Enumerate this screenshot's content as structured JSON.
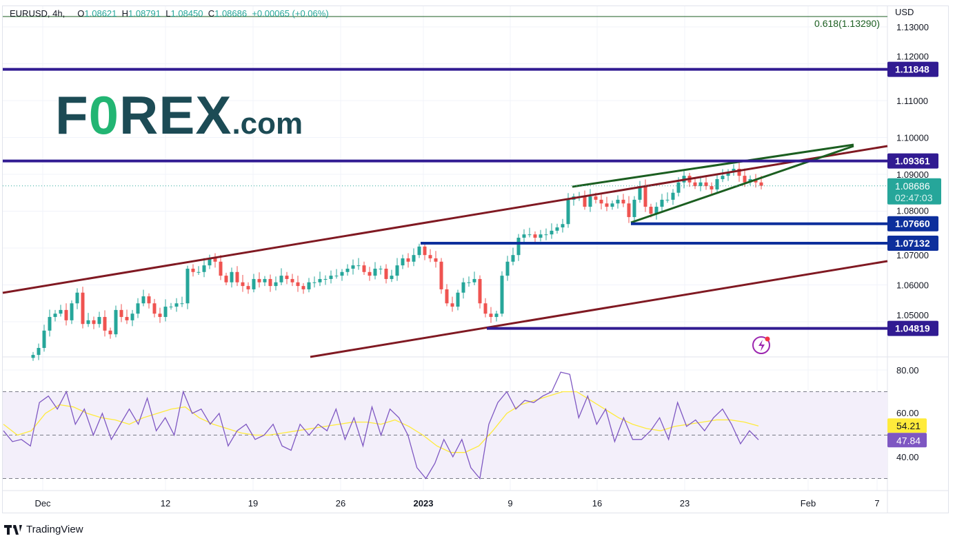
{
  "legend": {
    "symbol": "EURUSD, 4h,",
    "o_label": "O",
    "o": "1.08621",
    "h_label": "H",
    "h": "1.08791",
    "l_label": "L",
    "l": "1.08450",
    "c_label": "C",
    "c": "1.08686",
    "change": "+0.00065 (+0.06%)"
  },
  "logo": {
    "text_a": "F",
    "text_o": "0",
    "text_b": "REX",
    ".com": ".com",
    "com": ".com"
  },
  "footer": {
    "brand": "TradingView"
  },
  "chart_data": {
    "type": "candlestick",
    "symbol": "EURUSD",
    "interval": "4h",
    "currency": "USD",
    "price_ticks": [
      "1.13000",
      "1.12000",
      "1.11000",
      "1.10000",
      "1.09000",
      "1.08000",
      "1.07000",
      "1.06000",
      "1.05000"
    ],
    "price_tick_values": [
      1.13,
      1.12,
      1.11,
      1.1,
      1.09,
      1.08,
      1.07,
      1.06,
      1.05
    ],
    "time_ticks": [
      "Dec",
      "12",
      "19",
      "26",
      "2023",
      "9",
      "16",
      "23",
      "Feb",
      "7"
    ],
    "closes": [
      1.041,
      1.0429,
      1.0476,
      1.0513,
      1.0522,
      1.0532,
      1.0504,
      1.055,
      1.0579,
      1.0494,
      1.0504,
      1.0494,
      1.0513,
      1.0476,
      1.0466,
      1.0532,
      1.0513,
      1.0504,
      1.0522,
      1.055,
      1.0569,
      1.055,
      1.0522,
      1.0513,
      1.0541,
      1.0541,
      1.055,
      1.055,
      1.0644,
      1.0635,
      1.0635,
      1.0653,
      1.0672,
      1.0663,
      1.0625,
      1.0607,
      1.0635,
      1.0607,
      1.0597,
      1.0588,
      1.0616,
      1.0607,
      1.0616,
      1.0597,
      1.0607,
      1.0625,
      1.0616,
      1.0607,
      1.0597,
      1.0588,
      1.0607,
      1.0607,
      1.0616,
      1.0616,
      1.0625,
      1.0625,
      1.0635,
      1.0644,
      1.0653,
      1.0653,
      1.0635,
      1.0625,
      1.0644,
      1.0644,
      1.0616,
      1.0625,
      1.0653,
      1.0672,
      1.0663,
      1.0681,
      1.0704,
      1.0681,
      1.0672,
      1.0663,
      1.0588,
      1.055,
      1.0541,
      1.0579,
      1.0607,
      1.0607,
      1.0616,
      1.055,
      1.0522,
      1.0513,
      1.0522,
      1.0625,
      1.0663,
      1.0681,
      1.0728,
      1.0737,
      1.0737,
      1.0728,
      1.0737,
      1.0737,
      1.0747,
      1.0756,
      1.0765,
      1.0831,
      1.084,
      1.084,
      1.0812,
      1.084,
      1.0831,
      1.0821,
      1.0812,
      1.0821,
      1.0831,
      1.0821,
      1.0784,
      1.0831,
      1.0868,
      1.0812,
      1.0793,
      1.0812,
      1.0831,
      1.0831,
      1.085,
      1.0878,
      1.0896,
      1.0878,
      1.0868,
      1.0878,
      1.0868,
      1.0859,
      1.0887,
      1.0896,
      1.0906,
      1.0915,
      1.0896,
      1.0878,
      1.0887,
      1.0878,
      1.0869
    ],
    "last_price": "1.08686",
    "countdown": "02:47:03",
    "levels": [
      {
        "label": "1.11848",
        "value": 1.11848,
        "color": "#311b92"
      },
      {
        "label": "1.09361",
        "value": 1.09361,
        "color": "#311b92"
      },
      {
        "label": "1.07660",
        "value": 1.0766,
        "color": "#0d2f9c"
      },
      {
        "label": "1.07132",
        "value": 1.07132,
        "color": "#0d2f9c"
      },
      {
        "label": "1.04819",
        "value": 1.04819,
        "color": "#311b92"
      }
    ],
    "fib": {
      "label": "0.618(1.13290)",
      "value": 1.1329,
      "color": "#1b5e20"
    },
    "channel_color": "#801922",
    "wedge_color": "#1b5e20",
    "up_color": "#26a69a",
    "down_color": "#ef5350",
    "rsi": {
      "ticks": [
        "80.00",
        "60.00",
        "40.00"
      ],
      "tick_values": [
        80,
        60,
        40
      ],
      "band": [
        30,
        70
      ],
      "mid": 50,
      "values": [
        52,
        47,
        48,
        45,
        65,
        68,
        62,
        70,
        55,
        62,
        50,
        60,
        48,
        55,
        62,
        55,
        67,
        52,
        58,
        50,
        70,
        60,
        62,
        55,
        60,
        45,
        52,
        55,
        48,
        50,
        55,
        45,
        43,
        55,
        50,
        55,
        52,
        62,
        48,
        58,
        45,
        63,
        50,
        62,
        58,
        50,
        35,
        30,
        37,
        48,
        40,
        48,
        35,
        30,
        55,
        65,
        70,
        62,
        66,
        65,
        68,
        70,
        79,
        78,
        58,
        68,
        55,
        62,
        47,
        58,
        48,
        48,
        52,
        58,
        48,
        65,
        54,
        57,
        52,
        58,
        62,
        55,
        46,
        52,
        47.84
      ],
      "ma": [
        55,
        50,
        52,
        60,
        64,
        63,
        60,
        58,
        57,
        55,
        58,
        60,
        62,
        63,
        58,
        55,
        53,
        51,
        50,
        50,
        51,
        52,
        53,
        54,
        55,
        56,
        56,
        55,
        57,
        54,
        50,
        45,
        42,
        42,
        45,
        52,
        60,
        64,
        66,
        68,
        70,
        70,
        66,
        62,
        58,
        55,
        53,
        52,
        54,
        55,
        56,
        57,
        57,
        56,
        54.21
      ],
      "value_label": "47.84",
      "ma_label": "54.21",
      "line_color": "#7e57c2",
      "ma_color": "#ffeb3b",
      "band_fill": "#f3effa"
    }
  }
}
